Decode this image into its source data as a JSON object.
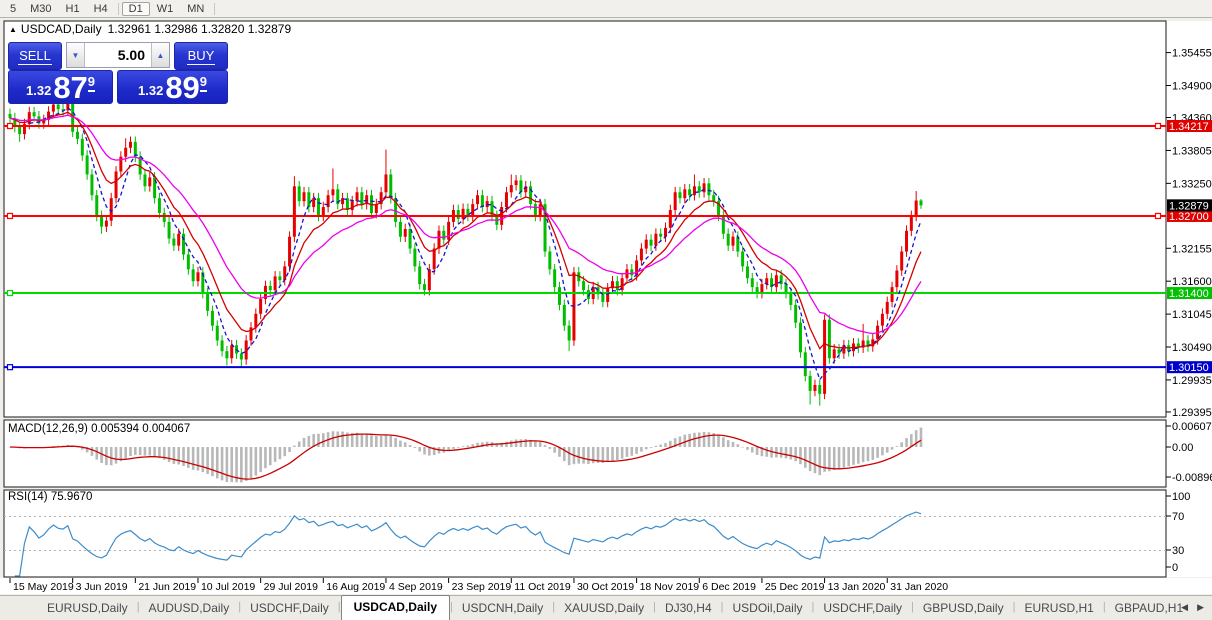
{
  "toolbar": {
    "timeframes": [
      "5",
      "M30",
      "H1",
      "H4",
      "D1",
      "W1",
      "MN"
    ],
    "active": "D1"
  },
  "symbol_header": {
    "collapse_icon": "black-triangle",
    "title": "USDCAD,Daily",
    "ohlc_text": "1.32961 1.32986 1.32820 1.32879"
  },
  "trade_panel": {
    "sell_label": "SELL",
    "buy_label": "BUY",
    "volume": "5.00",
    "sell_price": {
      "base": "1.32",
      "big": "87",
      "sup": "9"
    },
    "buy_price": {
      "base": "1.32",
      "big": "89",
      "sup": "9"
    }
  },
  "chart_data": {
    "type": "candlestick",
    "symbol": "USDCAD",
    "timeframe": "Daily",
    "note": "red candles = bullish, green candles = bearish",
    "colors": {
      "bull": "#e60000",
      "bear": "#00bd00",
      "ma_fast": "#1414cc",
      "ma_mid": "#d40000",
      "ma_slow": "#ee00ee",
      "line_red": "#ff0000",
      "line_green": "#00d800",
      "line_blue": "#0000d8",
      "badge_red": "#e00000",
      "badge_green": "#00c200",
      "badge_blue": "#0000cc",
      "badge_black": "#000000",
      "macd_hist": "#b8b8b8",
      "macd_signal": "#cc0000",
      "rsi_line": "#3f8cc8"
    },
    "y_axis": {
      "ticks": [
        1.35455,
        1.349,
        1.3436,
        1.33805,
        1.3325,
        1.32155,
        1.316,
        1.31045,
        1.3049,
        1.29935,
        1.29395
      ]
    },
    "price_lines": [
      {
        "price": 1.34217,
        "color": "red"
      },
      {
        "price": 1.327,
        "color": "red"
      },
      {
        "price": 1.314,
        "color": "green"
      },
      {
        "price": 1.3015,
        "color": "blue"
      }
    ],
    "current_price": 1.32879,
    "x_axis": {
      "labels": [
        "15 May 2019",
        "3 Jun 2019",
        "21 Jun 2019",
        "10 Jul 2019",
        "29 Jul 2019",
        "16 Aug 2019",
        "4 Sep 2019",
        "23 Sep 2019",
        "11 Oct 2019",
        "30 Oct 2019",
        "18 Nov 2019",
        "6 Dec 2019",
        "25 Dec 2019",
        "13 Jan 2020",
        "31 Jan 2020"
      ],
      "indices": [
        0,
        13,
        26,
        39,
        52,
        65,
        78,
        91,
        104,
        117,
        130,
        143,
        156,
        169,
        182
      ]
    },
    "candles": {
      "first_open": 1.3442,
      "closes": [
        1.3435,
        1.342,
        1.3408,
        1.3425,
        1.3445,
        1.3438,
        1.3426,
        1.3432,
        1.3446,
        1.3458,
        1.345,
        1.3448,
        1.346,
        1.3412,
        1.34,
        1.3372,
        1.334,
        1.3305,
        1.327,
        1.3252,
        1.3262,
        1.33,
        1.3345,
        1.337,
        1.3385,
        1.3395,
        1.337,
        1.334,
        1.332,
        1.3335,
        1.33,
        1.3275,
        1.326,
        1.3232,
        1.322,
        1.324,
        1.3205,
        1.318,
        1.316,
        1.3175,
        1.314,
        1.311,
        1.3085,
        1.306,
        1.3042,
        1.303,
        1.3052,
        1.3038,
        1.3028,
        1.306,
        1.3082,
        1.3105,
        1.313,
        1.3152,
        1.3145,
        1.3168,
        1.3162,
        1.3185,
        1.3235,
        1.332,
        1.3295,
        1.331,
        1.3285,
        1.33,
        1.327,
        1.3285,
        1.3305,
        1.3315,
        1.329,
        1.33,
        1.328,
        1.3295,
        1.331,
        1.329,
        1.3305,
        1.3275,
        1.329,
        1.331,
        1.334,
        1.33,
        1.326,
        1.3235,
        1.3248,
        1.3215,
        1.3185,
        1.3155,
        1.3145,
        1.318,
        1.3215,
        1.3245,
        1.323,
        1.326,
        1.328,
        1.3265,
        1.3282,
        1.327,
        1.329,
        1.3305,
        1.3285,
        1.3295,
        1.327,
        1.3255,
        1.3285,
        1.331,
        1.3322,
        1.333,
        1.331,
        1.332,
        1.329,
        1.327,
        1.329,
        1.321,
        1.318,
        1.315,
        1.312,
        1.3085,
        1.306,
        1.3175,
        1.316,
        1.3145,
        1.313,
        1.315,
        1.3138,
        1.3125,
        1.3148,
        1.316,
        1.3145,
        1.3165,
        1.318,
        1.317,
        1.3195,
        1.3215,
        1.323,
        1.322,
        1.324,
        1.3235,
        1.325,
        1.328,
        1.331,
        1.33,
        1.3315,
        1.3305,
        1.332,
        1.331,
        1.3325,
        1.3305,
        1.3295,
        1.327,
        1.324,
        1.322,
        1.3235,
        1.321,
        1.3185,
        1.3165,
        1.315,
        1.314,
        1.3155,
        1.3165,
        1.315,
        1.317,
        1.3155,
        1.314,
        1.312,
        1.309,
        1.304,
        1.3,
        1.2975,
        1.2985,
        1.297,
        1.3095,
        1.303,
        1.3045,
        1.3038,
        1.3052,
        1.3042,
        1.3055,
        1.3048,
        1.306,
        1.305,
        1.3062,
        1.3085,
        1.3105,
        1.3125,
        1.315,
        1.3178,
        1.321,
        1.3245,
        1.327,
        1.3296,
        1.32879
      ],
      "overrides": {
        "2": {
          "low": 1.3395
        },
        "9": {
          "high": 1.3465
        },
        "12": {
          "high": 1.3462
        },
        "19": {
          "low": 1.324
        },
        "24": {
          "high": 1.3401
        },
        "45": {
          "low": 1.3018
        },
        "48": {
          "low": 1.3015
        },
        "59": {
          "high": 1.3337
        },
        "67": {
          "high": 1.335
        },
        "78": {
          "high": 1.3382
        },
        "104": {
          "high": 1.334
        },
        "116": {
          "low": 1.3042
        },
        "142": {
          "high": 1.334
        },
        "166": {
          "low": 1.2952
        },
        "168": {
          "low": 1.295
        },
        "177": {
          "high": 1.3088
        },
        "188": {
          "high": 1.3312
        }
      },
      "last": {
        "open": 1.32961,
        "high": 1.32986,
        "low": 1.3282,
        "close": 1.32879
      }
    },
    "moving_averages": [
      {
        "type": "sma",
        "period": 5,
        "color": "#1414cc",
        "dashed": true
      },
      {
        "type": "ema",
        "period": 10,
        "color": "#d40000",
        "dashed": false
      },
      {
        "type": "ema",
        "period": 21,
        "color": "#ee00ee",
        "dashed": false
      }
    ],
    "indicators": [
      {
        "name": "MACD",
        "label": "MACD(12,26,9)",
        "values": "0.005394 0.004067",
        "axis_labels": [
          "0.006078",
          "0.00",
          "-0.008965"
        ],
        "fast": 12,
        "slow": 26,
        "signal": 9
      },
      {
        "name": "RSI",
        "label": "RSI(14)",
        "values": "75.9670",
        "axis_labels": [
          "100",
          "70",
          "30",
          "0"
        ],
        "period": 14,
        "levels": [
          70,
          30
        ]
      }
    ]
  },
  "tabs": {
    "items": [
      "EURUSD,Daily",
      "AUDUSD,Daily",
      "USDCHF,Daily",
      "USDCAD,Daily",
      "USDCNH,Daily",
      "XAUUSD,Daily",
      "DJ30,H4",
      "USDOil,Daily",
      "USDCHF,Daily",
      "GBPUSD,Daily",
      "EURUSD,H1",
      "GBPAUD,H1"
    ],
    "active_index": 3
  }
}
